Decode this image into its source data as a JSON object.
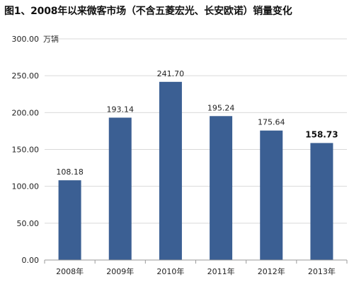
{
  "header": {
    "title": "图1、2008年以来微客市场（不含五菱宏光、长安欧诺）销量变化"
  },
  "unit_label": "万辆",
  "colors": {
    "bar": "#3b5f93",
    "grid": "#d9d9d9",
    "axis": "#9a9a9a"
  },
  "chart_data": {
    "type": "bar",
    "categories": [
      "2008年",
      "2009年",
      "2010年",
      "2011年",
      "2012年",
      "2013年"
    ],
    "values": [
      108.18,
      193.14,
      241.7,
      195.24,
      175.64,
      158.73
    ],
    "data_labels": [
      "108.18",
      "193.14",
      "241.70",
      "195.24",
      "175.64",
      "158.73"
    ],
    "highlighted_label_index": 5,
    "ylim": [
      0,
      300
    ],
    "yticks": [
      "0.00",
      "50.00",
      "100.00",
      "150.00",
      "200.00",
      "250.00",
      "300.00"
    ],
    "ytick_values": [
      0,
      50,
      100,
      150,
      200,
      250,
      300
    ],
    "grid": true
  }
}
